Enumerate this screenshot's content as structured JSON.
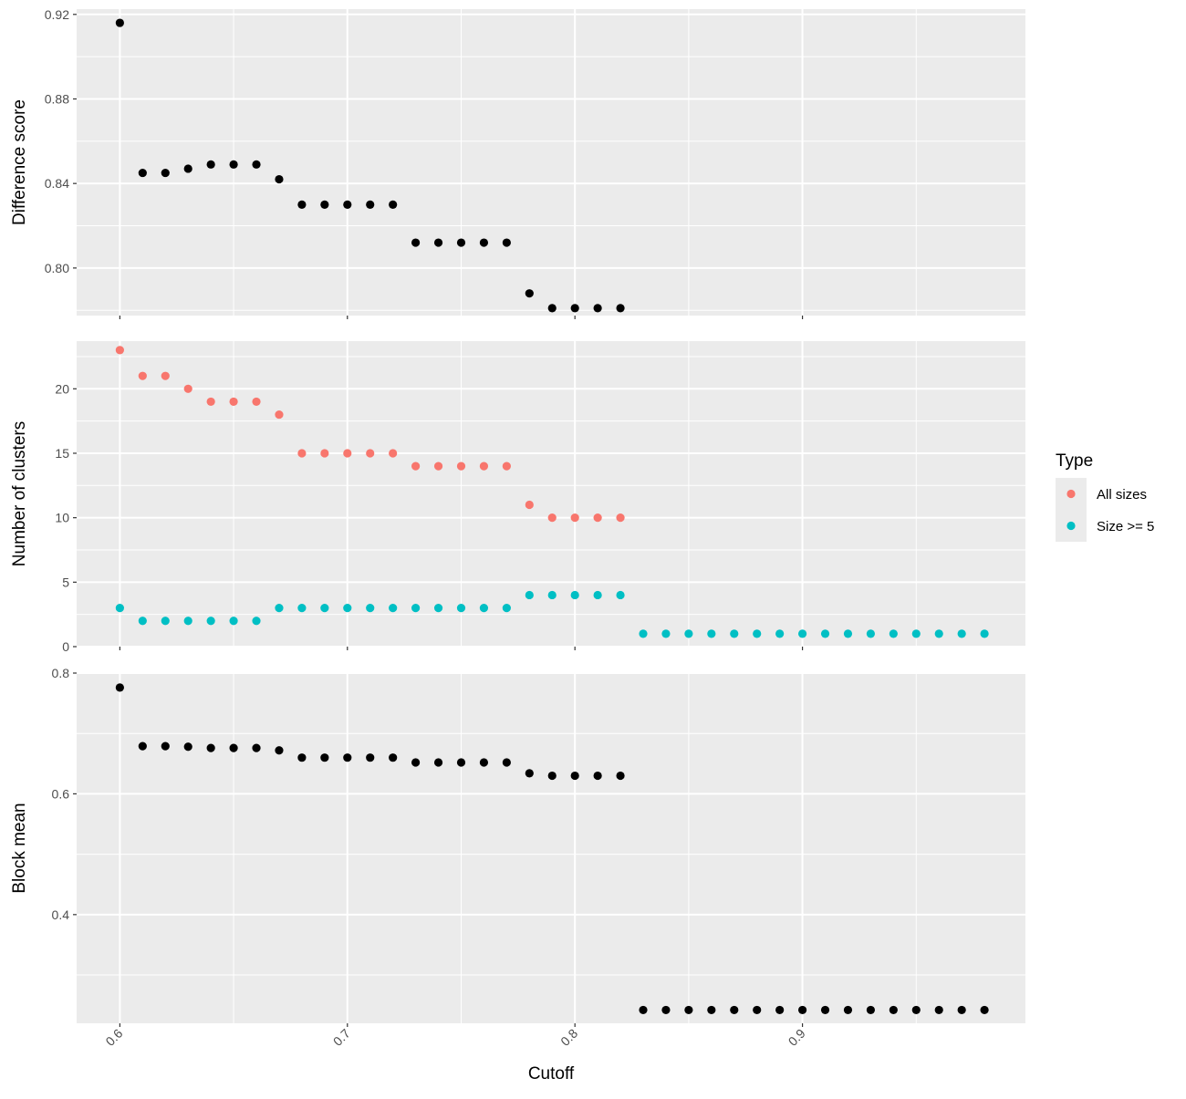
{
  "chart_data": {
    "type": "scatter",
    "xlabel": "Cutoff",
    "x_ticks": [
      0.6,
      0.7,
      0.8,
      0.9
    ],
    "x_tick_labels": [
      "0.6",
      "0.7",
      "0.8",
      "0.9"
    ],
    "xlim": [
      0.581,
      0.998
    ],
    "panels": [
      {
        "ylabel": "Difference score",
        "ylim": [
          0.7775,
          0.9225
        ],
        "y_ticks": [
          0.8,
          0.84,
          0.88,
          0.92
        ],
        "y_tick_labels": [
          "0.80",
          "0.84",
          "0.88",
          "0.92"
        ],
        "series": [
          {
            "color": "#000000",
            "x": [
              0.6,
              0.61,
              0.62,
              0.63,
              0.64,
              0.65,
              0.66,
              0.67,
              0.68,
              0.69,
              0.7,
              0.71,
              0.72,
              0.73,
              0.74,
              0.75,
              0.76,
              0.77,
              0.78,
              0.79,
              0.8,
              0.81,
              0.82
            ],
            "y": [
              0.916,
              0.845,
              0.845,
              0.847,
              0.849,
              0.849,
              0.849,
              0.842,
              0.83,
              0.83,
              0.83,
              0.83,
              0.83,
              0.812,
              0.812,
              0.812,
              0.812,
              0.812,
              0.788,
              0.781,
              0.781,
              0.781,
              0.781
            ]
          }
        ]
      },
      {
        "ylabel": "Number of clusters",
        "ylim": [
          0,
          23.7
        ],
        "y_ticks": [
          0,
          5,
          10,
          15,
          20
        ],
        "y_tick_labels": [
          "0",
          "5",
          "10",
          "15",
          "20"
        ],
        "series": [
          {
            "name": "All sizes",
            "color": "#F8766D",
            "x": [
              0.6,
              0.61,
              0.62,
              0.63,
              0.64,
              0.65,
              0.66,
              0.67,
              0.68,
              0.69,
              0.7,
              0.71,
              0.72,
              0.73,
              0.74,
              0.75,
              0.76,
              0.77,
              0.78,
              0.79,
              0.8,
              0.81,
              0.82
            ],
            "y": [
              23,
              21,
              21,
              20,
              19,
              19,
              19,
              18,
              15,
              15,
              15,
              15,
              15,
              14,
              14,
              14,
              14,
              14,
              11,
              10,
              10,
              10,
              10
            ]
          },
          {
            "name": "Size >= 5",
            "color": "#00BFC4",
            "x": [
              0.6,
              0.61,
              0.62,
              0.63,
              0.64,
              0.65,
              0.66,
              0.67,
              0.68,
              0.69,
              0.7,
              0.71,
              0.72,
              0.73,
              0.74,
              0.75,
              0.76,
              0.77,
              0.78,
              0.79,
              0.8,
              0.81,
              0.82,
              0.83,
              0.84,
              0.85,
              0.86,
              0.87,
              0.88,
              0.89,
              0.9,
              0.91,
              0.92,
              0.93,
              0.94,
              0.95,
              0.96,
              0.97,
              0.98
            ],
            "y": [
              3,
              2,
              2,
              2,
              2,
              2,
              2,
              3,
              3,
              3,
              3,
              3,
              3,
              3,
              3,
              3,
              3,
              3,
              4,
              4,
              4,
              4,
              4,
              1,
              1,
              1,
              1,
              1,
              1,
              1,
              1,
              1,
              1,
              1,
              1,
              1,
              1,
              1,
              1
            ]
          }
        ]
      },
      {
        "ylabel": "Block mean",
        "ylim": [
          0.22,
          0.8
        ],
        "y_ticks": [
          0.4,
          0.6,
          0.8
        ],
        "y_tick_labels": [
          "0.4",
          "0.6",
          "0.8"
        ],
        "series": [
          {
            "color": "#000000",
            "x": [
              0.6,
              0.61,
              0.62,
              0.63,
              0.64,
              0.65,
              0.66,
              0.67,
              0.68,
              0.69,
              0.7,
              0.71,
              0.72,
              0.73,
              0.74,
              0.75,
              0.76,
              0.77,
              0.78,
              0.79,
              0.8,
              0.81,
              0.82,
              0.83,
              0.84,
              0.85,
              0.86,
              0.87,
              0.88,
              0.89,
              0.9,
              0.91,
              0.92,
              0.93,
              0.94,
              0.95,
              0.96,
              0.97,
              0.98
            ],
            "y": [
              0.776,
              0.679,
              0.679,
              0.678,
              0.676,
              0.676,
              0.676,
              0.672,
              0.66,
              0.66,
              0.66,
              0.66,
              0.66,
              0.652,
              0.652,
              0.652,
              0.652,
              0.652,
              0.634,
              0.63,
              0.63,
              0.63,
              0.63,
              0.242,
              0.242,
              0.242,
              0.242,
              0.242,
              0.242,
              0.242,
              0.242,
              0.242,
              0.242,
              0.242,
              0.242,
              0.242,
              0.242,
              0.242,
              0.242
            ]
          }
        ]
      }
    ],
    "legend": {
      "title": "Type",
      "position": "right",
      "entries": [
        {
          "label": "All sizes",
          "color": "#F8766D"
        },
        {
          "label": "Size >= 5",
          "color": "#00BFC4"
        }
      ]
    },
    "panel_background": "#EBEBEB",
    "grid_color": "#FFFFFF",
    "grid": true
  }
}
